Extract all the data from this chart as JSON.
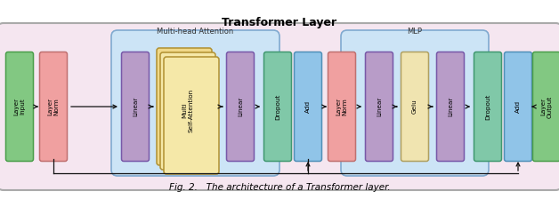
{
  "title": "Transformer Layer",
  "caption": "Fig. 2.   The architecture of a Transformer layer.",
  "outer_bg": "#f5e6f0",
  "mha_bg": "#cce4f6",
  "mha_label": "Multi-head Attention",
  "mlp_bg": "#cce4f6",
  "mlp_label": "MLP",
  "block_color_green": "#82c882",
  "block_color_pink": "#f0a0a0",
  "block_color_purple": "#b89cc8",
  "block_color_teal": "#80c8a8",
  "block_color_blue": "#90c4e8",
  "block_color_yellow": "#f0d888",
  "block_color_cream": "#f0e4b0",
  "arrow_color": "#111111",
  "border_green": "#4a9e4a",
  "border_pink": "#c07070",
  "border_purple": "#7858a8",
  "border_teal": "#409870",
  "border_blue": "#5090b8",
  "border_yellow": "#b09030",
  "border_cream": "#b0a060",
  "border_mha": "#80aad0",
  "border_outer": "#aaaaaa"
}
